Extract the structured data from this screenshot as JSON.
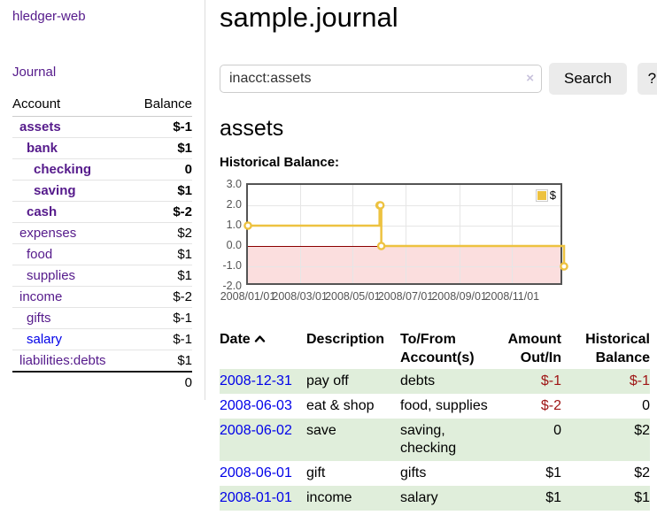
{
  "sidebar": {
    "brand": "hledger-web",
    "journal_link": "Journal",
    "table": {
      "account_header": "Account",
      "balance_header": "Balance",
      "rows": [
        {
          "name": "assets",
          "depth": 1,
          "bold": true,
          "balance": "$-1",
          "balance_style": "negative"
        },
        {
          "name": "bank",
          "depth": 2,
          "bold": true,
          "balance": "$1",
          "balance_style": "normal"
        },
        {
          "name": "checking",
          "depth": 3,
          "bold": true,
          "balance": "0",
          "balance_style": "normal"
        },
        {
          "name": "saving",
          "depth": 3,
          "bold": true,
          "balance": "$1",
          "balance_style": "normal"
        },
        {
          "name": "cash",
          "depth": 2,
          "bold": true,
          "balance": "$-2",
          "balance_style": "negative"
        },
        {
          "name": "expenses",
          "depth": 1,
          "bold": false,
          "balance": "$2",
          "balance_style": "normal"
        },
        {
          "name": "food",
          "depth": 2,
          "bold": false,
          "balance": "$1",
          "balance_style": "normal"
        },
        {
          "name": "supplies",
          "depth": 2,
          "bold": false,
          "balance": "$1",
          "balance_style": "normal"
        },
        {
          "name": "income",
          "depth": 1,
          "bold": false,
          "balance": "$-2",
          "balance_style": "negative-muted"
        },
        {
          "name": "gifts",
          "depth": 2,
          "bold": false,
          "balance": "$-1",
          "balance_style": "negative-muted"
        },
        {
          "name": "salary",
          "depth": 2,
          "bold": false,
          "balance": "$-1",
          "balance_style": "negative-muted",
          "link_color": "blue"
        },
        {
          "name": "liabilities:debts",
          "depth": 1,
          "bold": false,
          "balance": "$1",
          "balance_style": "normal"
        }
      ],
      "total": "0"
    }
  },
  "main": {
    "title": "sample.journal",
    "search": {
      "value": "inacct:assets",
      "clear_icon": "×",
      "search_button": "Search",
      "help_button": "?"
    },
    "account_heading": "assets",
    "chart_title": "Historical Balance:"
  },
  "chart_data": {
    "type": "line",
    "step": true,
    "title": "Historical Balance",
    "series": [
      {
        "name": "$",
        "color": "#edc240",
        "points": [
          {
            "date": "2008-01-01",
            "value": 1
          },
          {
            "date": "2008-06-01",
            "value": 2
          },
          {
            "date": "2008-06-02",
            "value": 2
          },
          {
            "date": "2008-06-03",
            "value": 0
          },
          {
            "date": "2008-12-31",
            "value": -1
          }
        ]
      }
    ],
    "x_range": [
      "2008-01-01",
      "2008-12-31"
    ],
    "x_ticks": [
      "2008/01/01",
      "2008/03/01",
      "2008/05/01",
      "2008/07/01",
      "2008/09/01",
      "2008/11/01"
    ],
    "y_ticks": [
      "3.0",
      "2.0",
      "1.0",
      "0.0",
      "-1.0",
      "-2.0"
    ],
    "y_values": [
      3,
      2,
      1,
      0,
      -1,
      -2
    ],
    "ylim": [
      -2,
      3
    ],
    "grid": true,
    "legend": {
      "label": "$",
      "position": "top-right"
    },
    "colors": {
      "line": "#edc240",
      "negative_region_fill": "#fbdede",
      "zero_line": "#8b0000",
      "gridline": "#e6e6e6",
      "border": "#545454",
      "tick_text": "#545454"
    }
  },
  "register": {
    "headers": {
      "date": "Date",
      "description": "Description",
      "accounts": "To/From Account(s)",
      "amount": "Amount Out/In",
      "balance": "Historical Balance"
    },
    "rows": [
      {
        "date": "2008-12-31",
        "description": "pay off",
        "accounts": "debts",
        "amount": "$-1",
        "amount_negative": true,
        "balance": "$-1",
        "balance_negative": true
      },
      {
        "date": "2008-06-03",
        "description": "eat & shop",
        "accounts": "food, supplies",
        "amount": "$-2",
        "amount_negative": true,
        "balance": "0",
        "balance_negative": false
      },
      {
        "date": "2008-06-02",
        "description": "save",
        "accounts": "saving, checking",
        "amount": "0",
        "amount_negative": false,
        "balance": "$2",
        "balance_negative": false
      },
      {
        "date": "2008-06-01",
        "description": "gift",
        "accounts": "gifts",
        "amount": "$1",
        "amount_negative": false,
        "balance": "$2",
        "balance_negative": false
      },
      {
        "date": "2008-01-01",
        "description": "income",
        "accounts": "salary",
        "amount": "$1",
        "amount_negative": false,
        "balance": "$1",
        "balance_negative": false
      }
    ]
  },
  "colors": {
    "link_purple": "#551a8b",
    "link_blue": "#0000e8",
    "negative_strong": "#9e1414",
    "negative_muted": "#c06666",
    "stripe_green": "#e0eedb"
  }
}
